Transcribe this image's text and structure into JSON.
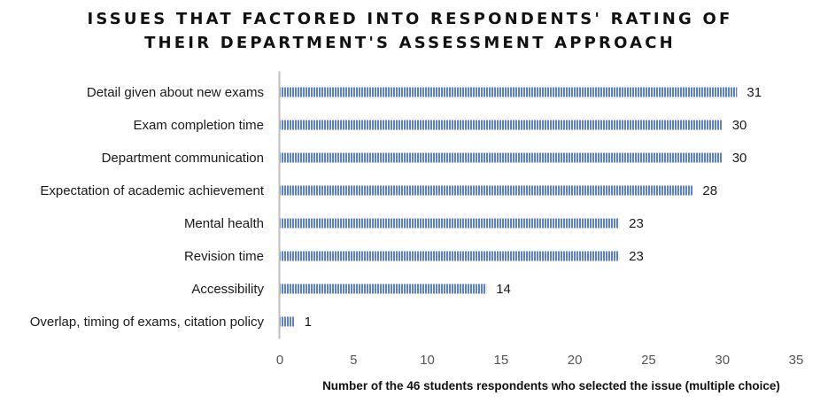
{
  "chart_data": {
    "type": "bar",
    "orientation": "horizontal",
    "title_lines": [
      "ISSUES THAT FACTORED INTO RESPONDENTS' RATING OF",
      "THEIR DEPARTMENT'S ASSESSMENT APPROACH"
    ],
    "categories": [
      "Detail given about new exams",
      "Exam completion time",
      "Department communication",
      "Expectation of academic achievement",
      "Mental health",
      "Revision time",
      "Accessibility",
      "Overlap, timing of exams, citation policy"
    ],
    "values": [
      31,
      30,
      30,
      28,
      23,
      23,
      14,
      1
    ],
    "data_labels": [
      "31",
      "30",
      "30",
      "28",
      "23",
      "23",
      "14",
      "1"
    ],
    "xlabel": "Number of the 46 students respondents who selected the issue (multiple choice)",
    "ylabel": "",
    "xlim": [
      0,
      35
    ],
    "xticks": [
      "0",
      "5",
      "10",
      "15",
      "20",
      "25",
      "30",
      "35"
    ],
    "grid": false,
    "legend": "none",
    "colors": {
      "bar_fill": "#5b7fd1",
      "bar_stripe": "#ffffff",
      "axis": "#bfbfbf"
    }
  }
}
